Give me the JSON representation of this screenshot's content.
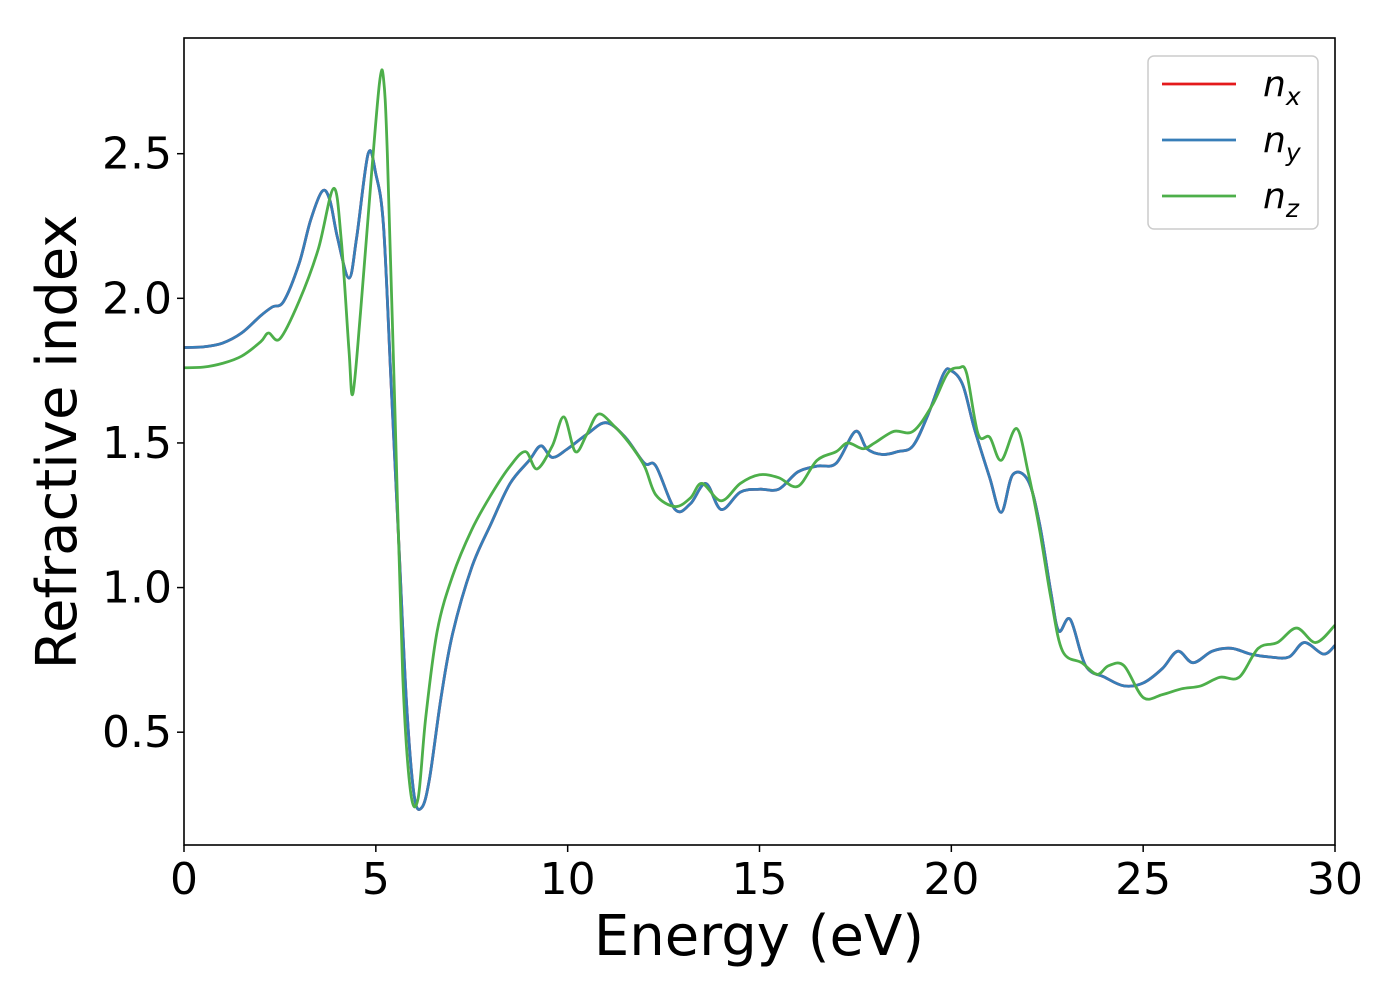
{
  "chart_data": {
    "type": "line",
    "xlabel": "Energy (eV)",
    "ylabel": "Refractive index",
    "xlim": [
      0,
      30
    ],
    "ylim": [
      0.11,
      2.9
    ],
    "x_ticks": [
      "0",
      "5",
      "10",
      "15",
      "20",
      "25",
      "30"
    ],
    "y_ticks": [
      "0.5",
      "1.0",
      "1.5",
      "2.0",
      "2.5"
    ],
    "grid": false,
    "legend_placement": "top-right",
    "series": [
      {
        "name": "n_x",
        "label_base": "n",
        "label_sub": "x",
        "color": "#e41a1c",
        "points": [
          [
            0,
            1.83
          ],
          [
            0.5,
            1.832
          ],
          [
            1,
            1.845
          ],
          [
            1.5,
            1.88
          ],
          [
            2,
            1.94
          ],
          [
            2.3,
            1.97
          ],
          [
            2.6,
            1.99
          ],
          [
            3,
            2.12
          ],
          [
            3.3,
            2.27
          ],
          [
            3.6,
            2.37
          ],
          [
            3.8,
            2.34
          ],
          [
            4,
            2.21
          ],
          [
            4.3,
            2.07
          ],
          [
            4.5,
            2.21
          ],
          [
            4.8,
            2.5
          ],
          [
            5,
            2.43
          ],
          [
            5.2,
            2.25
          ],
          [
            5.4,
            1.7
          ],
          [
            5.6,
            1.15
          ],
          [
            5.8,
            0.6
          ],
          [
            6,
            0.28
          ],
          [
            6.2,
            0.24
          ],
          [
            6.4,
            0.34
          ],
          [
            6.7,
            0.62
          ],
          [
            7,
            0.84
          ],
          [
            7.5,
            1.07
          ],
          [
            8,
            1.22
          ],
          [
            8.5,
            1.36
          ],
          [
            9,
            1.44
          ],
          [
            9.3,
            1.49
          ],
          [
            9.6,
            1.45
          ],
          [
            10,
            1.48
          ],
          [
            10.5,
            1.53
          ],
          [
            11,
            1.57
          ],
          [
            11.5,
            1.52
          ],
          [
            12,
            1.43
          ],
          [
            12.3,
            1.42
          ],
          [
            12.8,
            1.27
          ],
          [
            13.2,
            1.29
          ],
          [
            13.6,
            1.36
          ],
          [
            14,
            1.27
          ],
          [
            14.5,
            1.33
          ],
          [
            15,
            1.34
          ],
          [
            15.5,
            1.34
          ],
          [
            16,
            1.4
          ],
          [
            16.5,
            1.42
          ],
          [
            17,
            1.43
          ],
          [
            17.5,
            1.54
          ],
          [
            17.8,
            1.48
          ],
          [
            18.2,
            1.46
          ],
          [
            18.6,
            1.47
          ],
          [
            19,
            1.49
          ],
          [
            19.4,
            1.6
          ],
          [
            19.8,
            1.74
          ],
          [
            20,
            1.75
          ],
          [
            20.3,
            1.7
          ],
          [
            20.6,
            1.55
          ],
          [
            21,
            1.38
          ],
          [
            21.3,
            1.26
          ],
          [
            21.6,
            1.39
          ],
          [
            22,
            1.37
          ],
          [
            22.3,
            1.22
          ],
          [
            22.6,
            0.98
          ],
          [
            22.8,
            0.85
          ],
          [
            23.1,
            0.89
          ],
          [
            23.5,
            0.73
          ],
          [
            24,
            0.69
          ],
          [
            24.5,
            0.66
          ],
          [
            25,
            0.67
          ],
          [
            25.5,
            0.72
          ],
          [
            25.9,
            0.78
          ],
          [
            26.3,
            0.74
          ],
          [
            26.8,
            0.78
          ],
          [
            27.3,
            0.79
          ],
          [
            27.8,
            0.77
          ],
          [
            28.3,
            0.76
          ],
          [
            28.8,
            0.76
          ],
          [
            29.2,
            0.81
          ],
          [
            29.7,
            0.77
          ],
          [
            30,
            0.8
          ]
        ]
      },
      {
        "name": "n_y",
        "label_base": "n",
        "label_sub": "y",
        "color": "#377eb8",
        "points": [
          [
            0,
            1.83
          ],
          [
            0.5,
            1.832
          ],
          [
            1,
            1.845
          ],
          [
            1.5,
            1.88
          ],
          [
            2,
            1.94
          ],
          [
            2.3,
            1.97
          ],
          [
            2.6,
            1.99
          ],
          [
            3,
            2.12
          ],
          [
            3.3,
            2.27
          ],
          [
            3.6,
            2.37
          ],
          [
            3.8,
            2.34
          ],
          [
            4,
            2.21
          ],
          [
            4.3,
            2.07
          ],
          [
            4.5,
            2.21
          ],
          [
            4.8,
            2.5
          ],
          [
            5,
            2.43
          ],
          [
            5.2,
            2.25
          ],
          [
            5.4,
            1.7
          ],
          [
            5.6,
            1.15
          ],
          [
            5.8,
            0.6
          ],
          [
            6,
            0.28
          ],
          [
            6.2,
            0.24
          ],
          [
            6.4,
            0.34
          ],
          [
            6.7,
            0.62
          ],
          [
            7,
            0.84
          ],
          [
            7.5,
            1.07
          ],
          [
            8,
            1.22
          ],
          [
            8.5,
            1.36
          ],
          [
            9,
            1.44
          ],
          [
            9.3,
            1.49
          ],
          [
            9.6,
            1.45
          ],
          [
            10,
            1.48
          ],
          [
            10.5,
            1.53
          ],
          [
            11,
            1.57
          ],
          [
            11.5,
            1.52
          ],
          [
            12,
            1.43
          ],
          [
            12.3,
            1.42
          ],
          [
            12.8,
            1.27
          ],
          [
            13.2,
            1.29
          ],
          [
            13.6,
            1.36
          ],
          [
            14,
            1.27
          ],
          [
            14.5,
            1.33
          ],
          [
            15,
            1.34
          ],
          [
            15.5,
            1.34
          ],
          [
            16,
            1.4
          ],
          [
            16.5,
            1.42
          ],
          [
            17,
            1.43
          ],
          [
            17.5,
            1.54
          ],
          [
            17.8,
            1.48
          ],
          [
            18.2,
            1.46
          ],
          [
            18.6,
            1.47
          ],
          [
            19,
            1.49
          ],
          [
            19.4,
            1.6
          ],
          [
            19.8,
            1.74
          ],
          [
            20,
            1.75
          ],
          [
            20.3,
            1.7
          ],
          [
            20.6,
            1.55
          ],
          [
            21,
            1.38
          ],
          [
            21.3,
            1.26
          ],
          [
            21.6,
            1.39
          ],
          [
            22,
            1.37
          ],
          [
            22.3,
            1.22
          ],
          [
            22.6,
            0.98
          ],
          [
            22.8,
            0.85
          ],
          [
            23.1,
            0.89
          ],
          [
            23.5,
            0.73
          ],
          [
            24,
            0.69
          ],
          [
            24.5,
            0.66
          ],
          [
            25,
            0.67
          ],
          [
            25.5,
            0.72
          ],
          [
            25.9,
            0.78
          ],
          [
            26.3,
            0.74
          ],
          [
            26.8,
            0.78
          ],
          [
            27.3,
            0.79
          ],
          [
            27.8,
            0.77
          ],
          [
            28.3,
            0.76
          ],
          [
            28.8,
            0.76
          ],
          [
            29.2,
            0.81
          ],
          [
            29.7,
            0.77
          ],
          [
            30,
            0.8
          ]
        ]
      },
      {
        "name": "n_z",
        "label_base": "n",
        "label_sub": "z",
        "color": "#4daf4a",
        "points": [
          [
            0,
            1.76
          ],
          [
            0.5,
            1.762
          ],
          [
            1,
            1.775
          ],
          [
            1.5,
            1.8
          ],
          [
            2,
            1.85
          ],
          [
            2.2,
            1.88
          ],
          [
            2.5,
            1.86
          ],
          [
            3,
            1.99
          ],
          [
            3.5,
            2.17
          ],
          [
            3.9,
            2.38
          ],
          [
            4.1,
            2.2
          ],
          [
            4.3,
            1.82
          ],
          [
            4.4,
            1.67
          ],
          [
            4.6,
            1.95
          ],
          [
            4.9,
            2.45
          ],
          [
            5.1,
            2.75
          ],
          [
            5.2,
            2.76
          ],
          [
            5.3,
            2.5
          ],
          [
            5.5,
            1.6
          ],
          [
            5.7,
            0.7
          ],
          [
            5.9,
            0.3
          ],
          [
            6.1,
            0.27
          ],
          [
            6.3,
            0.55
          ],
          [
            6.6,
            0.85
          ],
          [
            7,
            1.04
          ],
          [
            7.5,
            1.2
          ],
          [
            8,
            1.32
          ],
          [
            8.5,
            1.42
          ],
          [
            8.9,
            1.47
          ],
          [
            9.2,
            1.41
          ],
          [
            9.6,
            1.49
          ],
          [
            9.9,
            1.59
          ],
          [
            10.2,
            1.47
          ],
          [
            10.5,
            1.53
          ],
          [
            10.8,
            1.6
          ],
          [
            11.2,
            1.56
          ],
          [
            11.6,
            1.5
          ],
          [
            12,
            1.42
          ],
          [
            12.3,
            1.32
          ],
          [
            12.8,
            1.28
          ],
          [
            13.2,
            1.31
          ],
          [
            13.5,
            1.36
          ],
          [
            14,
            1.3
          ],
          [
            14.5,
            1.36
          ],
          [
            15,
            1.39
          ],
          [
            15.5,
            1.38
          ],
          [
            16,
            1.35
          ],
          [
            16.5,
            1.44
          ],
          [
            17,
            1.47
          ],
          [
            17.3,
            1.5
          ],
          [
            17.7,
            1.48
          ],
          [
            18,
            1.5
          ],
          [
            18.5,
            1.54
          ],
          [
            19,
            1.54
          ],
          [
            19.5,
            1.63
          ],
          [
            19.9,
            1.74
          ],
          [
            20.2,
            1.76
          ],
          [
            20.4,
            1.74
          ],
          [
            20.7,
            1.53
          ],
          [
            21,
            1.52
          ],
          [
            21.3,
            1.44
          ],
          [
            21.7,
            1.55
          ],
          [
            22,
            1.4
          ],
          [
            22.3,
            1.2
          ],
          [
            22.6,
            0.96
          ],
          [
            22.9,
            0.78
          ],
          [
            23.4,
            0.74
          ],
          [
            23.8,
            0.7
          ],
          [
            24.1,
            0.73
          ],
          [
            24.5,
            0.73
          ],
          [
            25,
            0.62
          ],
          [
            25.5,
            0.63
          ],
          [
            26,
            0.65
          ],
          [
            26.5,
            0.66
          ],
          [
            27,
            0.69
          ],
          [
            27.5,
            0.69
          ],
          [
            28,
            0.79
          ],
          [
            28.5,
            0.81
          ],
          [
            29,
            0.86
          ],
          [
            29.5,
            0.81
          ],
          [
            30,
            0.87
          ]
        ]
      }
    ]
  }
}
